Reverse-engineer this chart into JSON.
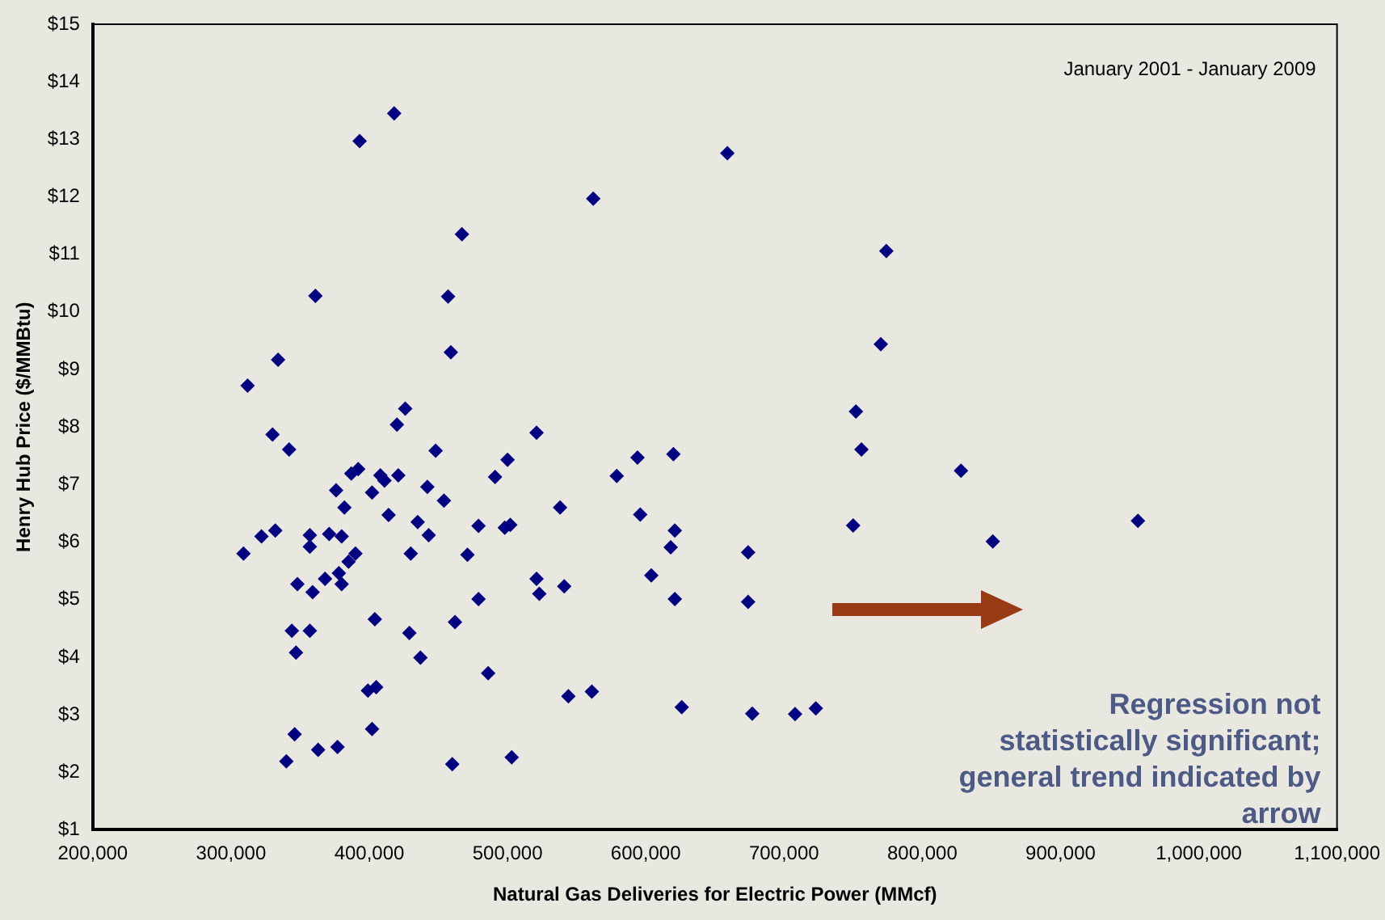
{
  "chart_data": {
    "type": "scatter",
    "xlabel": "Natural Gas Deliveries for Electric Power (MMcf)",
    "ylabel": "Henry Hub Price ($/MMBtu)",
    "annotations": [
      "January 2001 - January 2009",
      "Regression not statistically significant; general trend indicated by arrow"
    ],
    "xlim": [
      200000,
      1100000
    ],
    "xticks": [
      {
        "value": 200000,
        "label": "200,000"
      },
      {
        "value": 300000,
        "label": "300,000"
      },
      {
        "value": 400000,
        "label": "400,000"
      },
      {
        "value": 500000,
        "label": "500,000"
      },
      {
        "value": 600000,
        "label": "600,000"
      },
      {
        "value": 700000,
        "label": "700,000"
      },
      {
        "value": 800000,
        "label": "800,000"
      },
      {
        "value": 900000,
        "label": "900,000"
      },
      {
        "value": 1000000,
        "label": "1,000,000"
      },
      {
        "value": 1100000,
        "label": "1,100,000"
      }
    ],
    "ylim": [
      1,
      15
    ],
    "yticks": [
      {
        "value": 1,
        "label": "$1"
      },
      {
        "value": 2,
        "label": "$2"
      },
      {
        "value": 3,
        "label": "$3"
      },
      {
        "value": 4,
        "label": "$4"
      },
      {
        "value": 5,
        "label": "$5"
      },
      {
        "value": 6,
        "label": "$6"
      },
      {
        "value": 7,
        "label": "$7"
      },
      {
        "value": 8,
        "label": "$8"
      },
      {
        "value": 9,
        "label": "$9"
      },
      {
        "value": 10,
        "label": "$10"
      },
      {
        "value": 11,
        "label": "$11"
      },
      {
        "value": 12,
        "label": "$12"
      },
      {
        "value": 13,
        "label": "$13"
      },
      {
        "value": 14,
        "label": "$14"
      },
      {
        "value": 15,
        "label": "$15"
      }
    ],
    "grid": false,
    "legend": false,
    "marker": "diamond",
    "series": [
      {
        "color": "#000080",
        "x": [
          309000,
          322000,
          332000,
          330000,
          342000,
          340000,
          346000,
          344000,
          347000,
          348000,
          357000,
          357000,
          357000,
          359000,
          363000,
          368000,
          371000,
          376000,
          377000,
          378000,
          380000,
          380000,
          382000,
          385000,
          390000,
          387000,
          392000,
          399000,
          405000,
          402000,
          404000,
          402000,
          408000,
          411000,
          421000,
          414000,
          420000,
          430000,
          429000,
          437000,
          435000,
          443000,
          442000,
          448000,
          454000,
          460000,
          462000,
          471000,
          479000,
          479000,
          486000,
          491000,
          500000,
          498000,
          503000,
          502000,
          521000,
          538000,
          594000,
          620000,
          579000,
          596000,
          621000,
          618000,
          674000,
          604000,
          521000,
          523000,
          541000,
          621000,
          674000,
          544000,
          561000,
          626000,
          677000,
          774000,
          770000,
          752000,
          756000,
          828000,
          750000,
          851000,
          708000,
          723000,
          956000,
          659000,
          562000,
          467000,
          457000,
          459000,
          418000,
          393000,
          361000,
          334000,
          312000,
          426000
        ],
        "values": [
          5.8,
          6.1,
          6.2,
          7.87,
          7.61,
          2.19,
          2.66,
          4.46,
          4.08,
          5.27,
          4.46,
          6.12,
          5.92,
          5.13,
          2.39,
          5.36,
          6.14,
          6.9,
          2.44,
          5.46,
          5.27,
          6.1,
          6.6,
          5.66,
          5.8,
          7.19,
          7.27,
          3.42,
          3.48,
          2.75,
          4.66,
          6.86,
          7.16,
          7.07,
          7.16,
          6.47,
          8.04,
          5.8,
          4.42,
          3.99,
          6.35,
          6.12,
          6.96,
          7.59,
          6.72,
          2.14,
          4.61,
          5.78,
          6.28,
          5.01,
          3.72,
          7.13,
          7.43,
          6.25,
          2.26,
          6.3,
          7.9,
          6.6,
          7.47,
          7.53,
          7.15,
          6.48,
          6.2,
          5.91,
          5.82,
          5.42,
          5.36,
          5.1,
          5.23,
          5.01,
          4.96,
          3.32,
          3.4,
          3.13,
          3.02,
          11.06,
          9.44,
          8.27,
          7.61,
          7.24,
          6.29,
          6.01,
          3.01,
          3.11,
          6.37,
          12.76,
          11.97,
          11.35,
          10.27,
          9.3,
          13.45,
          12.97,
          10.28,
          9.17,
          8.72,
          8.32
        ]
      }
    ]
  }
}
